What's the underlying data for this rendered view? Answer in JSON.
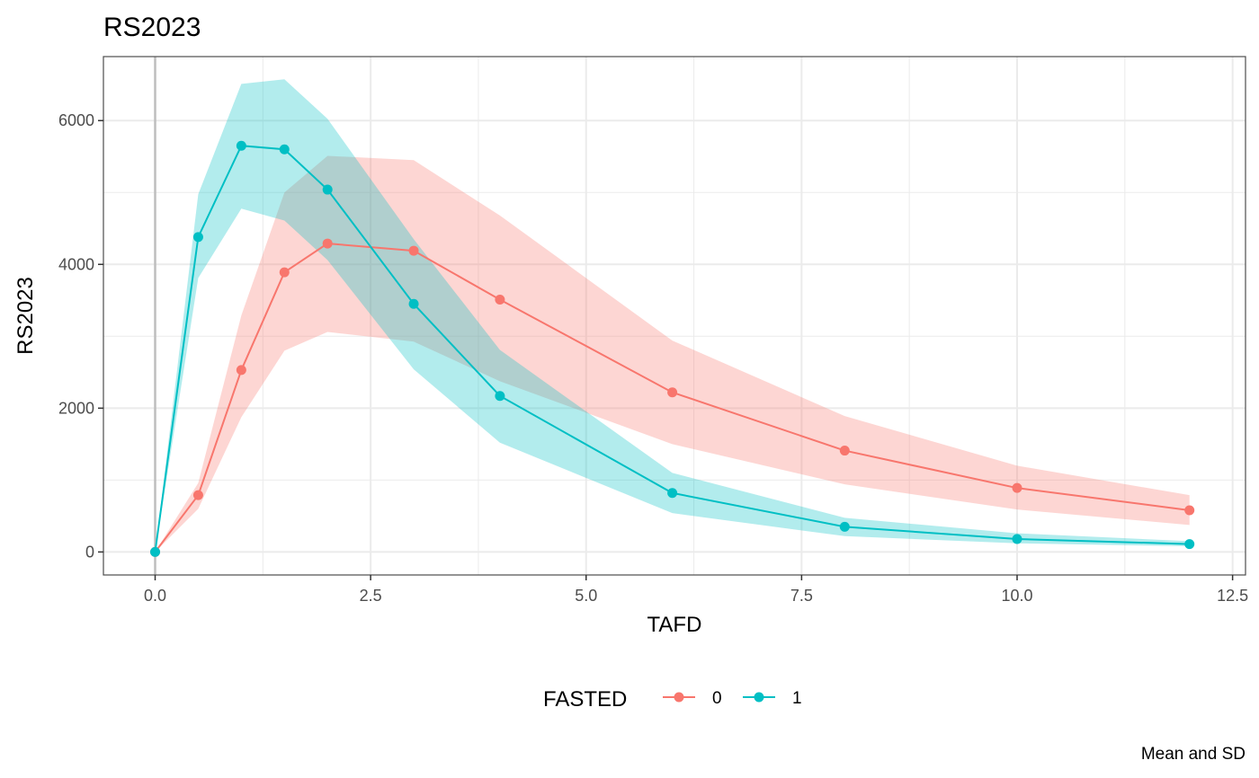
{
  "chart_data": {
    "type": "line",
    "title": "RS2023",
    "xlabel": "TAFD",
    "ylabel": "RS2023",
    "caption": "Mean and SD",
    "xlim": [
      -0.6,
      12.65
    ],
    "ylim": [
      -320,
      6890
    ],
    "x_ticks": [
      0.0,
      2.5,
      5.0,
      7.5,
      10.0,
      12.5
    ],
    "x_tick_labels": [
      "0.0",
      "2.5",
      "5.0",
      "7.5",
      "10.0",
      "12.5"
    ],
    "y_ticks": [
      0,
      2000,
      4000,
      6000
    ],
    "y_tick_labels": [
      "0",
      "2000",
      "4000",
      "6000"
    ],
    "grid": true,
    "legend": {
      "title": "FASTED",
      "position": "bottom",
      "entries": [
        "0",
        "1"
      ]
    },
    "x": [
      0,
      0.5,
      1,
      1.5,
      2,
      3,
      4,
      6,
      8,
      10,
      12
    ],
    "series": [
      {
        "name": "0",
        "color": "#F8766D",
        "band_color": "#F8766D",
        "values": [
          0,
          790,
          2530,
          3890,
          4290,
          4190,
          3510,
          2220,
          1410,
          890,
          580
        ],
        "upper": [
          0,
          960,
          3290,
          5000,
          5510,
          5450,
          4680,
          2940,
          1890,
          1200,
          790
        ],
        "lower": [
          0,
          600,
          1875,
          2800,
          3060,
          2925,
          2375,
          1500,
          940,
          590,
          375
        ]
      },
      {
        "name": "1",
        "color": "#00BFC4",
        "band_color": "#00BFC4",
        "values": [
          0,
          4380,
          5650,
          5600,
          5040,
          3450,
          2170,
          820,
          350,
          180,
          110
        ],
        "upper": [
          0,
          4975,
          6510,
          6575,
          6025,
          4350,
          2810,
          1100,
          475,
          260,
          150
        ],
        "lower": [
          0,
          3810,
          4775,
          4610,
          4060,
          2540,
          1520,
          540,
          220,
          120,
          80
        ]
      }
    ]
  }
}
